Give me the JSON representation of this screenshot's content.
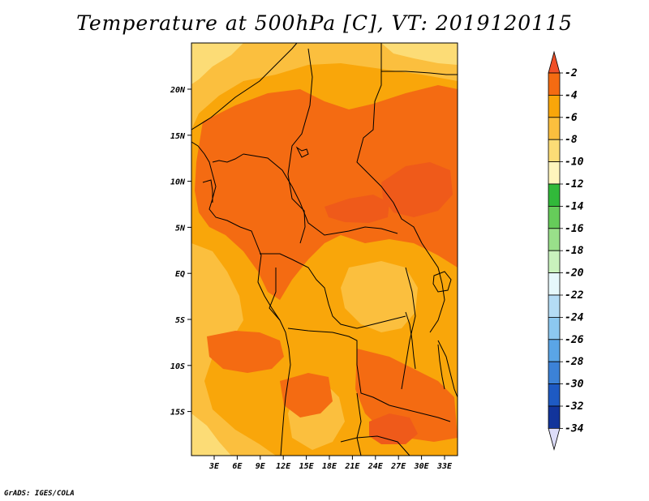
{
  "title": "Temperature at 500hPa [C], VT: 2019120115",
  "footer": "GrADS: IGES/COLA",
  "map": {
    "lon_labels": [
      "3E",
      "6E",
      "9E",
      "12E",
      "15E",
      "18E",
      "21E",
      "24E",
      "27E",
      "30E",
      "33E"
    ],
    "lat_labels": [
      "20N",
      "15N",
      "10N",
      "5N",
      "EQ",
      "5S",
      "10S",
      "15S"
    ],
    "field_colors": {
      "minus2_to_0": "#ff5a1e",
      "minus4_to_minus2": "#f46b12",
      "minus6_to_minus4": "#f9a60a",
      "minus8_to_minus6": "#fbbf3e",
      "minus10_to_minus8": "#fcdc76",
      "coast": "#000000"
    }
  },
  "colorbar": {
    "labels": [
      "-2",
      "-4",
      "-6",
      "-8",
      "-10",
      "-12",
      "-14",
      "-16",
      "-18",
      "-20",
      "-22",
      "-24",
      "-26",
      "-28",
      "-30",
      "-32",
      "-34"
    ],
    "colors": [
      "#f05a10",
      "#f46b12",
      "#f9a60a",
      "#fbbf3e",
      "#fcdc76",
      "#fff5bc",
      "#31b93a",
      "#66cc5a",
      "#99e08a",
      "#c9f2bd",
      "#e6f8fb",
      "#b4dcf5",
      "#8cc8f0",
      "#5aa5e6",
      "#3c82d7",
      "#1e5ac3",
      "#12349b",
      "#0a0f6e"
    ],
    "upper_arrow_color": "#f05028",
    "lower_arrow_color": "#dcdcf8"
  }
}
